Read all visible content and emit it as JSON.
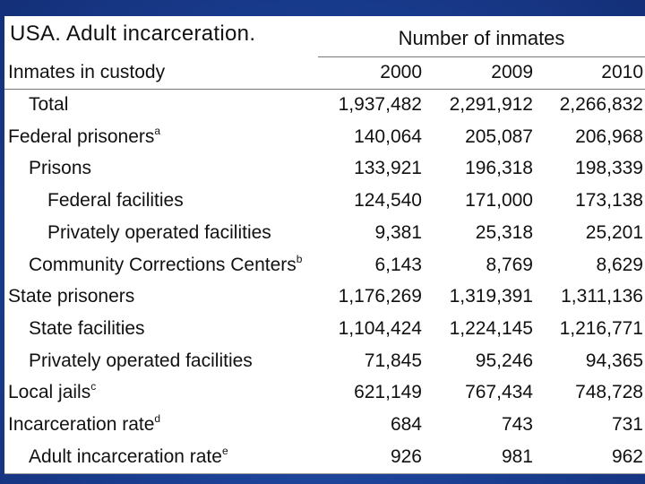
{
  "title": "USA. Adult incarceration.",
  "column_group": "Number of inmates",
  "header": {
    "label": "Inmates in custody",
    "years": [
      "2000",
      "2009",
      "2010"
    ]
  },
  "rows": [
    {
      "label": "Total",
      "sup": "",
      "values": [
        "1,937,482",
        "2,291,912",
        "2,266,832"
      ]
    },
    {
      "label": "Federal prisoners",
      "sup": "a",
      "values": [
        "140,064",
        "205,087",
        "206,968"
      ]
    },
    {
      "label": "Prisons",
      "sup": "",
      "values": [
        "133,921",
        "196,318",
        "198,339"
      ]
    },
    {
      "label": "Federal facilities",
      "sup": "",
      "values": [
        "124,540",
        "171,000",
        "173,138"
      ]
    },
    {
      "label": "Privately operated facilities",
      "sup": "",
      "values": [
        "9,381",
        "25,318",
        "25,201"
      ]
    },
    {
      "label": "Community Corrections Centers",
      "sup": "b",
      "values": [
        "6,143",
        "8,769",
        "8,629"
      ]
    },
    {
      "label": "State prisoners",
      "sup": "",
      "values": [
        "1,176,269",
        "1,319,391",
        "1,311,136"
      ]
    },
    {
      "label": "State facilities",
      "sup": "",
      "values": [
        "1,104,424",
        "1,224,145",
        "1,216,771"
      ]
    },
    {
      "label": "Privately operated facilities",
      "sup": "",
      "values": [
        "71,845",
        "95,246",
        "94,365"
      ]
    },
    {
      "label": "Local jails",
      "sup": "c",
      "values": [
        "621,149",
        "767,434",
        "748,728"
      ]
    },
    {
      "label": "Incarceration rate",
      "sup": "d",
      "values": [
        "684",
        "743",
        "731"
      ]
    },
    {
      "label": "Adult incarceration rate",
      "sup": "e",
      "values": [
        "926",
        "981",
        "962"
      ]
    }
  ]
}
